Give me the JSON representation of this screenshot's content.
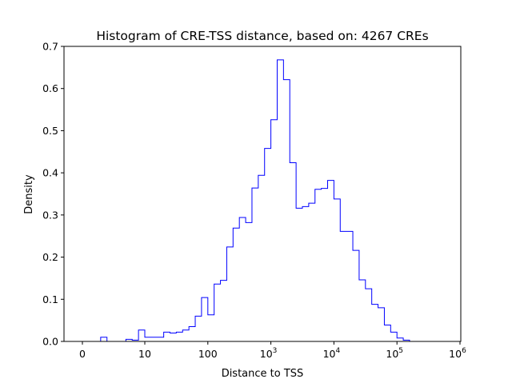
{
  "chart_data": {
    "type": "histogram",
    "title": "Histogram of CRE-TSS distance, based on: 4267 CREs",
    "xlabel": "Distance to TSS",
    "ylabel": "Density",
    "x_scale": "symlog",
    "x_ticks": [
      {
        "value": 0,
        "label": "0"
      },
      {
        "value": 10,
        "label": "10"
      },
      {
        "value": 100,
        "label": "100"
      },
      {
        "value": 1000,
        "label": "10",
        "exp": "3"
      },
      {
        "value": 10000,
        "label": "10",
        "exp": "4"
      },
      {
        "value": 100000,
        "label": "10",
        "exp": "5"
      },
      {
        "value": 1000000,
        "label": "10",
        "exp": "6"
      }
    ],
    "ylim": [
      0,
      0.7
    ],
    "y_ticks": [
      0.0,
      0.1,
      0.2,
      0.3,
      0.4,
      0.5,
      0.6,
      0.7
    ],
    "grid": false,
    "line_color": "#0000ff",
    "bins_log_x": {
      "edges_approx": [
        0.2,
        0.3,
        0.4,
        0.5,
        0.6,
        0.7,
        0.8,
        0.9,
        1.0,
        1.1,
        1.2,
        1.3,
        1.4,
        1.5,
        1.6,
        1.7,
        1.8,
        1.9,
        2.0,
        2.1,
        2.2,
        2.3,
        2.4,
        2.5,
        2.6,
        2.7,
        2.8,
        2.9,
        3.0,
        3.1,
        3.2,
        3.3,
        3.4,
        3.5,
        3.6,
        3.7,
        3.8,
        3.9,
        4.0,
        4.1,
        4.2,
        4.3,
        4.4,
        4.5,
        4.6,
        4.7,
        4.8,
        4.9,
        5.0,
        5.1,
        5.2,
        5.3,
        5.4,
        5.5,
        5.6,
        5.7
      ]
    },
    "values": [
      0.0,
      0.01,
      0.0,
      0.0,
      0.0,
      0.005,
      0.003,
      0.027,
      0.01,
      0.01,
      0.01,
      0.022,
      0.02,
      0.022,
      0.027,
      0.035,
      0.06,
      0.104,
      0.063,
      0.136,
      0.145,
      0.224,
      0.269,
      0.294,
      0.282,
      0.364,
      0.394,
      0.458,
      0.526,
      0.668,
      0.621,
      0.424,
      0.316,
      0.32,
      0.328,
      0.361,
      0.363,
      0.382,
      0.338,
      0.261,
      0.261,
      0.216,
      0.146,
      0.125,
      0.088,
      0.08,
      0.039,
      0.022,
      0.008,
      0.003,
      0.0,
      0.0,
      0.0,
      0.0,
      0.0
    ]
  }
}
